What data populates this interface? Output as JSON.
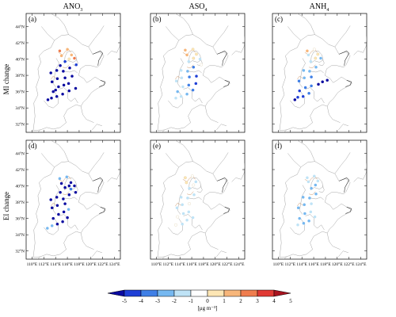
{
  "columns": [
    {
      "html": "ANO<tspan baseline-shift='sub' font-size='6'>3</tspan>"
    },
    {
      "html": "ASO<tspan baseline-shift='sub' font-size='6'>4</tspan>"
    },
    {
      "html": "ANH<tspan baseline-shift='sub' font-size='6'>4</tspan>"
    }
  ],
  "rows": [
    "MI change",
    "EI change"
  ],
  "panels": [
    "(a)",
    "(b)",
    "(c)",
    "(d)",
    "(e)",
    "(f)"
  ],
  "lat_ticks": [
    "44°N",
    "42°N",
    "40°N",
    "38°N",
    "36°N",
    "34°N",
    "32°N"
  ],
  "lon_ticks": [
    "110°E",
    "112°E",
    "114°E",
    "116°E",
    "118°E",
    "120°E",
    "122°E",
    "124°E"
  ],
  "colorbar": {
    "labels": [
      "-5",
      "-4",
      "-3",
      "-2",
      "-1",
      "0",
      "1",
      "2",
      "3",
      "4",
      "5"
    ],
    "colors": [
      "#0a0aa0",
      "#1f3fd6",
      "#3f7fe6",
      "#76b8f0",
      "#bfe3f6",
      "#ffffff",
      "#fde6b4",
      "#f7b67a",
      "#ef7d4e",
      "#e03a34",
      "#a8141f"
    ],
    "unit": "[μg m⁻³]"
  },
  "points": [
    [
      [
        112.7,
        35.0,
        0
      ],
      [
        113.3,
        35.2,
        0
      ],
      [
        114.2,
        35.4,
        0
      ],
      [
        115.2,
        35.7,
        0
      ],
      [
        116.3,
        36.1,
        0
      ],
      [
        117.4,
        36.4,
        0
      ],
      [
        113.6,
        36.0,
        0
      ],
      [
        114.5,
        36.6,
        0
      ],
      [
        115.4,
        36.8,
        0
      ],
      [
        116.2,
        37.0,
        0
      ],
      [
        113.4,
        37.2,
        0
      ],
      [
        114.3,
        37.6,
        0
      ],
      [
        115.6,
        37.7,
        0
      ],
      [
        116.8,
        37.9,
        0
      ],
      [
        113.2,
        38.3,
        0
      ],
      [
        114.2,
        38.6,
        0
      ],
      [
        115.3,
        38.5,
        0
      ],
      [
        116.4,
        38.9,
        0
      ],
      [
        114.8,
        39.2,
        0
      ],
      [
        115.6,
        39.7,
        1
      ],
      [
        116.3,
        40.0,
        6
      ],
      [
        115.0,
        40.4,
        7
      ],
      [
        116.7,
        40.5,
        7
      ],
      [
        117.2,
        40.1,
        8
      ],
      [
        114.7,
        41.0,
        8
      ],
      [
        116.0,
        41.2,
        7
      ],
      [
        117.5,
        39.3,
        1
      ],
      [
        114.0,
        36.2,
        0
      ]
    ],
    [
      [
        113.3,
        35.2,
        4
      ],
      [
        114.2,
        35.4,
        4
      ],
      [
        115.2,
        35.7,
        3
      ],
      [
        116.2,
        36.2,
        2
      ],
      [
        113.6,
        36.0,
        3
      ],
      [
        114.5,
        36.6,
        4
      ],
      [
        115.5,
        36.8,
        2
      ],
      [
        116.7,
        37.0,
        1
      ],
      [
        113.4,
        37.3,
        4
      ],
      [
        114.3,
        37.7,
        4
      ],
      [
        115.6,
        37.8,
        2
      ],
      [
        116.8,
        37.9,
        1
      ],
      [
        114.2,
        38.6,
        4
      ],
      [
        115.3,
        38.5,
        3
      ],
      [
        116.3,
        39.0,
        2
      ],
      [
        115.5,
        39.7,
        4
      ],
      [
        116.3,
        40.1,
        6
      ],
      [
        115.2,
        40.5,
        7
      ],
      [
        116.8,
        40.6,
        6
      ],
      [
        117.4,
        40.0,
        4
      ],
      [
        114.9,
        41.1,
        7
      ],
      [
        116.2,
        41.2,
        6
      ],
      [
        117.6,
        39.3,
        5
      ]
    ],
    [
      [
        112.8,
        35.0,
        0
      ],
      [
        113.3,
        35.3,
        1
      ],
      [
        114.2,
        35.4,
        1
      ],
      [
        115.2,
        35.8,
        2
      ],
      [
        113.6,
        36.1,
        1
      ],
      [
        114.6,
        36.5,
        2
      ],
      [
        115.6,
        36.7,
        2
      ],
      [
        116.8,
        36.9,
        0
      ],
      [
        117.5,
        37.2,
        0
      ],
      [
        118.3,
        37.4,
        0
      ],
      [
        113.5,
        37.3,
        2
      ],
      [
        114.4,
        37.7,
        3
      ],
      [
        115.6,
        37.8,
        2
      ],
      [
        114.3,
        38.6,
        3
      ],
      [
        115.3,
        38.5,
        3
      ],
      [
        116.4,
        39.0,
        3
      ],
      [
        115.5,
        39.7,
        4
      ],
      [
        116.3,
        40.1,
        6
      ],
      [
        115.1,
        40.5,
        4
      ],
      [
        116.7,
        40.6,
        6
      ],
      [
        114.9,
        41.0,
        7
      ],
      [
        116.1,
        41.2,
        5
      ],
      [
        117.2,
        40.1,
        3
      ]
    ],
    [
      [
        112.6,
        34.8,
        3
      ],
      [
        113.4,
        35.1,
        3
      ],
      [
        114.3,
        35.3,
        0
      ],
      [
        115.2,
        35.6,
        0
      ],
      [
        116.0,
        36.1,
        0
      ],
      [
        113.6,
        36.0,
        0
      ],
      [
        114.5,
        36.5,
        0
      ],
      [
        115.4,
        36.8,
        0
      ],
      [
        116.2,
        37.1,
        3
      ],
      [
        113.4,
        37.3,
        0
      ],
      [
        114.3,
        37.6,
        0
      ],
      [
        115.6,
        37.8,
        0
      ],
      [
        113.2,
        38.3,
        0
      ],
      [
        114.2,
        38.6,
        0
      ],
      [
        115.3,
        38.4,
        0
      ],
      [
        116.3,
        38.9,
        0
      ],
      [
        114.8,
        39.2,
        0
      ],
      [
        115.6,
        39.8,
        0
      ],
      [
        116.3,
        40.0,
        0
      ],
      [
        115.0,
        40.3,
        0
      ],
      [
        116.6,
        40.4,
        0
      ],
      [
        117.2,
        40.0,
        0
      ],
      [
        114.7,
        40.9,
        3
      ],
      [
        115.9,
        41.1,
        3
      ],
      [
        117.4,
        39.2,
        0
      ],
      [
        116.6,
        39.6,
        2
      ]
    ],
    [
      [
        113.3,
        35.2,
        5
      ],
      [
        114.4,
        35.3,
        4
      ],
      [
        115.2,
        35.8,
        4
      ],
      [
        116.2,
        36.1,
        4
      ],
      [
        113.6,
        36.2,
        5
      ],
      [
        114.6,
        36.6,
        4
      ],
      [
        115.5,
        36.8,
        4
      ],
      [
        113.5,
        37.3,
        4
      ],
      [
        114.4,
        37.7,
        4
      ],
      [
        115.6,
        37.8,
        5
      ],
      [
        114.2,
        38.6,
        4
      ],
      [
        115.3,
        38.5,
        4
      ],
      [
        116.4,
        38.9,
        4
      ],
      [
        115.6,
        39.7,
        4
      ],
      [
        116.3,
        40.1,
        5
      ],
      [
        115.1,
        40.4,
        6
      ],
      [
        116.7,
        40.5,
        4
      ],
      [
        114.9,
        41.0,
        6
      ],
      [
        116.1,
        41.2,
        5
      ]
    ],
    [
      [
        113.3,
        35.2,
        4
      ],
      [
        114.3,
        35.4,
        3
      ],
      [
        115.2,
        35.7,
        3
      ],
      [
        116.2,
        36.2,
        4
      ],
      [
        113.6,
        36.0,
        3
      ],
      [
        114.5,
        36.6,
        3
      ],
      [
        115.5,
        36.8,
        4
      ],
      [
        113.4,
        37.3,
        3
      ],
      [
        114.4,
        37.7,
        3
      ],
      [
        115.6,
        37.8,
        4
      ],
      [
        114.2,
        38.6,
        3
      ],
      [
        115.3,
        38.5,
        3
      ],
      [
        116.4,
        39.0,
        3
      ],
      [
        115.6,
        39.7,
        3
      ],
      [
        116.3,
        40.1,
        3
      ],
      [
        115.1,
        40.5,
        4
      ],
      [
        116.7,
        40.6,
        4
      ],
      [
        114.9,
        41.0,
        4
      ],
      [
        116.1,
        41.2,
        4
      ]
    ]
  ]
}
